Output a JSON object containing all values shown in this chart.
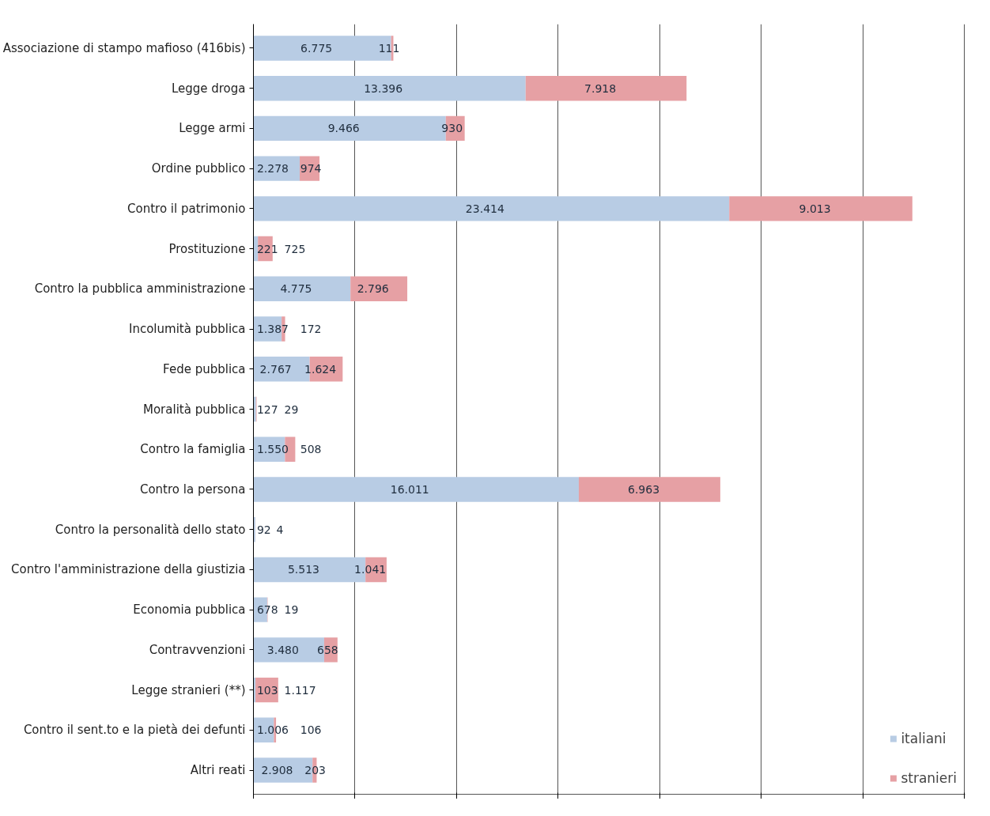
{
  "chart_data": {
    "type": "bar",
    "orientation": "horizontal",
    "stacked": true,
    "categories": [
      "Associazione di stampo mafioso (416bis)",
      "Legge droga",
      "Legge armi",
      "Ordine pubblico",
      "Contro il patrimonio",
      "Prostituzione",
      "Contro la pubblica amministrazione",
      "Incolumità pubblica",
      "Fede pubblica",
      "Moralità pubblica",
      "Contro la famiglia",
      "Contro la persona",
      "Contro la personalità dello stato",
      "Contro l'amministrazione della giustizia",
      "Economia pubblica",
      "Contravvenzioni",
      "Legge stranieri (**)",
      "Contro il sent.to e la pietà dei defunti",
      "Altri reati"
    ],
    "series": [
      {
        "name": "italiani",
        "color": "#b8cce4",
        "values": [
          6775,
          13396,
          9466,
          2278,
          23414,
          221,
          4775,
          1387,
          2767,
          127,
          1550,
          16011,
          92,
          5513,
          678,
          3480,
          103,
          1006,
          2908
        ],
        "value_labels": [
          "6.775",
          "13.396",
          "9.466",
          "2.278",
          "23.414",
          "221",
          "4.775",
          "1.387",
          "2.767",
          "127",
          "1.550",
          "16.011",
          "92",
          "5.513",
          "678",
          "3.480",
          "103",
          "1.006",
          "2.908"
        ]
      },
      {
        "name": "stranieri",
        "color": "#e6a0a4",
        "values": [
          111,
          7918,
          930,
          974,
          9013,
          725,
          2796,
          172,
          1624,
          29,
          508,
          6963,
          4,
          1041,
          19,
          658,
          1117,
          106,
          203
        ],
        "value_labels": [
          "111",
          "7.918",
          "930",
          "974",
          "9.013",
          "725",
          "2.796",
          "172",
          "1.624",
          "29",
          "508",
          "6.963",
          "4",
          "1.041",
          "19",
          "658",
          "1.117",
          "106",
          "203"
        ]
      }
    ],
    "grid": "x",
    "legend": "bottom right",
    "tick_labels": "y"
  }
}
